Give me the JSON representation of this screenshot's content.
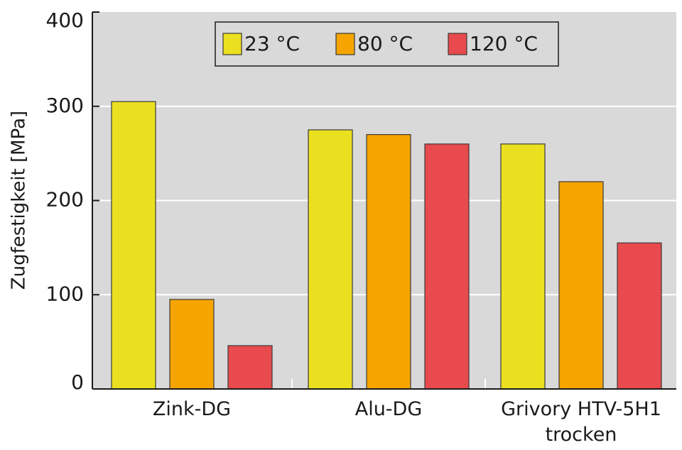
{
  "chart_data": {
    "type": "bar",
    "title": "",
    "xlabel": "",
    "ylabel": "Zugfestigkeit [MPa]",
    "ylim": [
      0,
      400
    ],
    "yticks": [
      0,
      100,
      200,
      300,
      400
    ],
    "grid": true,
    "legend_position": "top-center",
    "categories": [
      [
        "Zink-DG"
      ],
      [
        "Alu-DG"
      ],
      [
        "Grivory HTV-5H1",
        "trocken"
      ]
    ],
    "series": [
      {
        "name": "23 °C",
        "color": "#ebe01f",
        "values": [
          305,
          275,
          260
        ]
      },
      {
        "name": "80 °C",
        "color": "#f5a400",
        "values": [
          95,
          270,
          220
        ]
      },
      {
        "name": "120 °C",
        "color": "#e84a4d",
        "values": [
          46,
          260,
          155
        ]
      }
    ],
    "plot_background": "#d9d9d9",
    "grid_color": "#ffffff"
  }
}
